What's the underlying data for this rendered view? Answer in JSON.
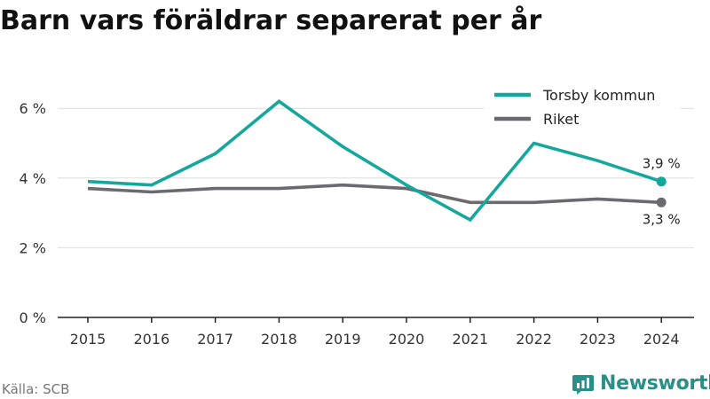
{
  "page": {
    "title": "Barn vars föräldrar separerat per år",
    "source": "Källa: SCB",
    "brand": "Newsworthy"
  },
  "colors": {
    "torsby": "#14a89d",
    "riket": "#6c6a71",
    "grid": "#dedede",
    "axis": "#222222",
    "brand": "#2a8f88"
  },
  "icons": {
    "brand": "newsworthy-logo-icon"
  },
  "chart_data": {
    "type": "line",
    "title": "Barn vars föräldrar separerat per år",
    "x": [
      "2015",
      "2016",
      "2017",
      "2018",
      "2019",
      "2020",
      "2021",
      "2022",
      "2023",
      "2024"
    ],
    "ylim": [
      0,
      7
    ],
    "yticks": [
      {
        "value": 0,
        "label": "0 %"
      },
      {
        "value": 2,
        "label": "2 %"
      },
      {
        "value": 4,
        "label": "4 %"
      },
      {
        "value": 6,
        "label": "6 %"
      }
    ],
    "grid": true,
    "legend": "top-right",
    "series": [
      {
        "name": "Torsby kommun",
        "color": "#14a89d",
        "values": [
          3.9,
          3.8,
          4.7,
          6.2,
          4.9,
          3.8,
          2.8,
          5.0,
          4.5,
          3.9
        ],
        "end_label": "3,9 %"
      },
      {
        "name": "Riket",
        "color": "#6c6a71",
        "values": [
          3.7,
          3.6,
          3.7,
          3.7,
          3.8,
          3.7,
          3.3,
          3.3,
          3.4,
          3.3
        ],
        "end_label": "3,3 %"
      }
    ]
  }
}
